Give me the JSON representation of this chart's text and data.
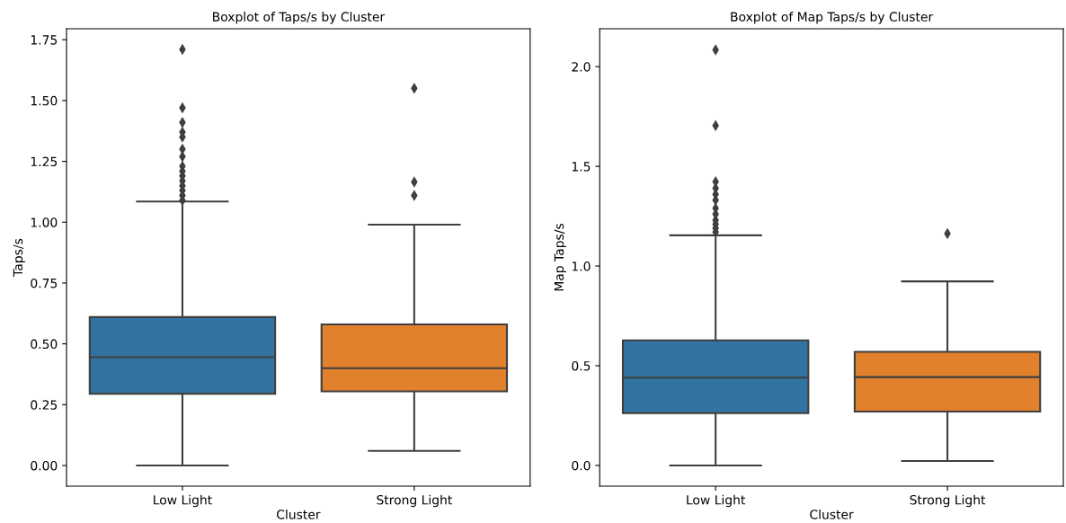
{
  "chart_data": [
    {
      "type": "box",
      "title": "Boxplot of Taps/s by Cluster",
      "xlabel": "Cluster",
      "ylabel": "Taps/s",
      "categories": [
        "Low Light",
        "Strong Light"
      ],
      "colors": [
        "#3274a1",
        "#e1812c"
      ],
      "ylim": [
        -0.085,
        1.795
      ],
      "yticks": [
        {
          "value": 0,
          "label": "0.00"
        },
        {
          "value": 0.25,
          "label": "0.25"
        },
        {
          "value": 0.5,
          "label": "0.50"
        },
        {
          "value": 0.75,
          "label": "0.75"
        },
        {
          "value": 1,
          "label": "1.00"
        },
        {
          "value": 1.25,
          "label": "1.25"
        },
        {
          "value": 1.5,
          "label": "1.50"
        },
        {
          "value": 1.75,
          "label": "1.75"
        }
      ],
      "marker": "diamond",
      "boxes": [
        {
          "low": 0,
          "q1": 0.295,
          "median": 0.445,
          "q3": 0.61,
          "high": 1.085,
          "outliers": [
            1.71,
            1.47,
            1.41,
            1.37,
            1.35,
            1.3,
            1.27,
            1.23,
            1.21,
            1.19,
            1.17,
            1.15,
            1.13,
            1.11,
            1.09
          ]
        },
        {
          "low": 0.06,
          "q1": 0.305,
          "median": 0.4,
          "q3": 0.58,
          "high": 0.99,
          "outliers": [
            1.11,
            1.165,
            1.55
          ]
        }
      ]
    },
    {
      "type": "box",
      "title": "Boxplot of Map Taps/s by Cluster",
      "xlabel": "Cluster",
      "ylabel": "Map Taps/s",
      "categories": [
        "Low Light",
        "Strong Light"
      ],
      "colors": [
        "#3274a1",
        "#e1812c"
      ],
      "ylim": [
        -0.104,
        2.19
      ],
      "yticks": [
        {
          "value": 0,
          "label": "0.0"
        },
        {
          "value": 0.5,
          "label": "0.5"
        },
        {
          "value": 1,
          "label": "1.0"
        },
        {
          "value": 1.5,
          "label": "1.5"
        },
        {
          "value": 2,
          "label": "2.0"
        }
      ],
      "marker": "diamond",
      "boxes": [
        {
          "low": 0,
          "q1": 0.262,
          "median": 0.44,
          "q3": 0.627,
          "high": 1.154,
          "outliers": [
            2.084,
            1.704,
            1.423,
            1.39,
            1.36,
            1.33,
            1.29,
            1.26,
            1.23,
            1.21,
            1.19,
            1.17
          ]
        },
        {
          "low": 0.022,
          "q1": 0.27,
          "median": 0.443,
          "q3": 0.57,
          "high": 0.923,
          "outliers": [
            1.163
          ]
        }
      ]
    }
  ]
}
